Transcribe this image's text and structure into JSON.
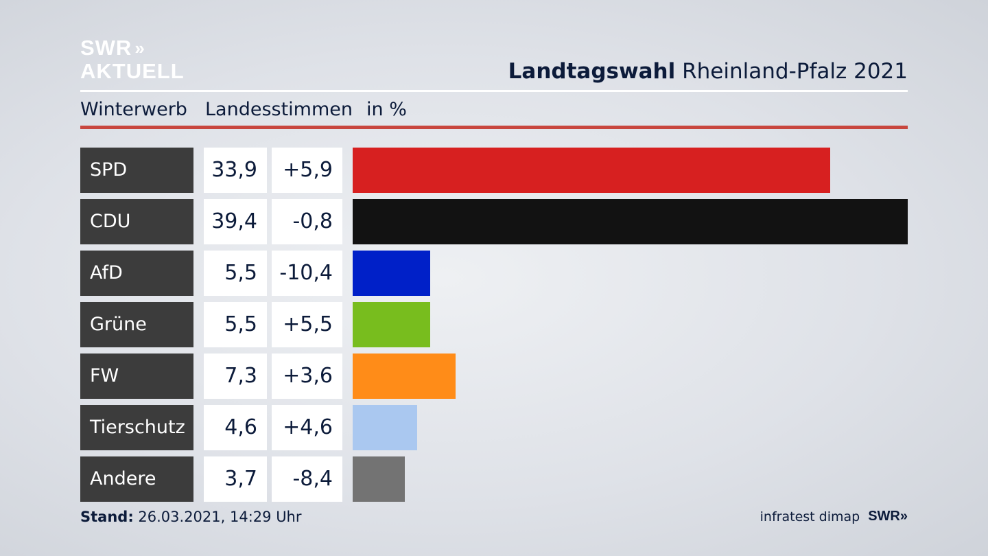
{
  "header": {
    "logo_line1": "SWR",
    "logo_chevrons": "»",
    "logo_line2": "AKTUELL",
    "title_bold": "Landtagswahl",
    "title_rest": "Rheinland-Pfalz 2021"
  },
  "subheader": {
    "col1": "Winterwerb",
    "col2": "Landesstimmen",
    "col3": "in %"
  },
  "chart_data": {
    "type": "bar",
    "title": "Landtagswahl Rheinland-Pfalz 2021",
    "subtitle": "Winterwerb Landesstimmen in %",
    "categories": [
      "SPD",
      "CDU",
      "AfD",
      "Grüne",
      "FW",
      "Tierschutz",
      "Andere"
    ],
    "values": [
      33.9,
      39.4,
      5.5,
      5.5,
      7.3,
      4.6,
      3.7
    ],
    "value_labels": [
      "33,9",
      "39,4",
      "5,5",
      "5,5",
      "7,3",
      "4,6",
      "3,7"
    ],
    "diff_labels": [
      "+5,9",
      "-0,8",
      "-10,4",
      "+5,5",
      "+3,6",
      "+4,6",
      "-8,4"
    ],
    "colors": [
      "#d72020",
      "#121212",
      "#0020c8",
      "#78bd1e",
      "#ff8c18",
      "#aac8f0",
      "#737373"
    ],
    "orientation": "horizontal",
    "xlim": [
      0,
      39.4
    ]
  },
  "footer": {
    "stand_label": "Stand:",
    "stand_value": "26.03.2021, 14:29 Uhr",
    "source": "infratest dimap",
    "brand": "SWR",
    "brand_chevrons": "»"
  }
}
